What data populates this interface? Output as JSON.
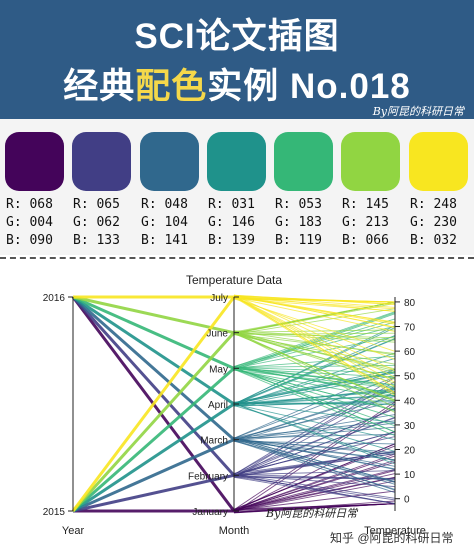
{
  "header": {
    "title_line1": "SCI论文插图",
    "title_line2_prefix": "经典",
    "title_line2_highlight": "配色",
    "title_line2_suffix": "实例 No.018",
    "byline": "By阿昆的科研日常",
    "bg_color": "#2f5b86",
    "highlight_color": "#f5d84a"
  },
  "palette": [
    {
      "r": "R: 068",
      "g": "G: 004",
      "b": "B: 090",
      "hex": "#44045a"
    },
    {
      "r": "R: 065",
      "g": "G: 062",
      "b": "B: 133",
      "hex": "#413e85"
    },
    {
      "r": "R: 048",
      "g": "G: 104",
      "b": "B: 141",
      "hex": "#30688d"
    },
    {
      "r": "R: 031",
      "g": "G: 146",
      "b": "B: 139",
      "hex": "#1f928b"
    },
    {
      "r": "R: 053",
      "g": "G: 183",
      "b": "B: 119",
      "hex": "#35b777"
    },
    {
      "r": "R: 145",
      "g": "G: 213",
      "b": "B: 066",
      "hex": "#91d542"
    },
    {
      "r": "R: 248",
      "g": "G: 230",
      "b": "B: 032",
      "hex": "#f8e620"
    }
  ],
  "chart_data": {
    "type": "parallel_coordinates",
    "title": "Temperature Data",
    "axes": [
      {
        "name": "Year",
        "ticks": [
          "2015",
          "2016"
        ]
      },
      {
        "name": "Month",
        "ticks": [
          "January",
          "February",
          "March",
          "April",
          "May",
          "June",
          "July"
        ]
      },
      {
        "name": "Temperature",
        "ticks": [
          "0",
          "10",
          "20",
          "30",
          "40",
          "50",
          "60",
          "70",
          "80"
        ],
        "range": [
          -5,
          82
        ]
      }
    ],
    "colormap": "viridis"
  },
  "watermarks": {
    "chart_byline": "By阿昆的科研日常",
    "platform": "知乎 @阿昆的科研日常"
  }
}
